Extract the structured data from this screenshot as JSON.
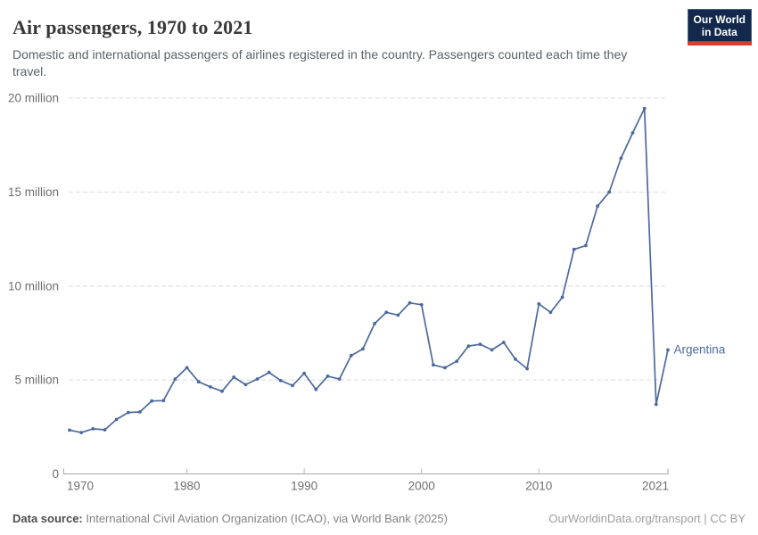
{
  "header": {
    "title": "Air passengers, 1970 to 2021",
    "subtitle": "Domestic and international passengers of airlines registered in the country. Passengers counted each time they travel.",
    "logo": {
      "line1": "Our World",
      "line2": "in Data"
    }
  },
  "chart_data": {
    "type": "line",
    "title": "Air passengers, 1970 to 2021",
    "entity": "Argentina",
    "unit": "passengers per year (million)",
    "x": [
      1970,
      1971,
      1972,
      1973,
      1974,
      1975,
      1976,
      1977,
      1978,
      1979,
      1980,
      1981,
      1982,
      1983,
      1984,
      1985,
      1986,
      1987,
      1988,
      1989,
      1990,
      1991,
      1992,
      1993,
      1994,
      1995,
      1996,
      1997,
      1998,
      1999,
      2000,
      2001,
      2002,
      2003,
      2004,
      2005,
      2006,
      2007,
      2008,
      2009,
      2010,
      2011,
      2012,
      2013,
      2014,
      2015,
      2016,
      2017,
      2018,
      2019,
      2020,
      2021
    ],
    "values": [
      2.33,
      2.2,
      2.4,
      2.35,
      2.9,
      3.27,
      3.3,
      3.88,
      3.9,
      5.05,
      5.65,
      4.9,
      4.63,
      4.4,
      5.15,
      4.75,
      5.05,
      5.4,
      4.97,
      4.7,
      5.35,
      4.5,
      5.2,
      5.05,
      6.3,
      6.65,
      8.0,
      8.6,
      8.45,
      9.1,
      9.0,
      5.8,
      5.65,
      6.0,
      6.8,
      6.9,
      6.6,
      7.0,
      6.1,
      5.6,
      9.05,
      8.6,
      9.4,
      11.95,
      12.15,
      14.25,
      15.0,
      16.8,
      18.15,
      19.45,
      3.7,
      6.6
    ],
    "ylim": [
      0,
      20
    ],
    "yticks": [
      5,
      10,
      15,
      20
    ],
    "ytick_labels": [
      "5 million",
      "10 million",
      "15 million",
      "20 million"
    ],
    "y_zero_label": "0",
    "xticks": [
      1970,
      1980,
      1990,
      2000,
      2010,
      2021
    ],
    "xtick_labels": [
      "1970",
      "1980",
      "1990",
      "2000",
      "2010",
      "2021"
    ],
    "grid": "horizontal-dashed",
    "legend_position": "end-of-line-label",
    "line_color": "#4c6a9c"
  },
  "footer": {
    "source_label": "Data source:",
    "source_text": " International Civil Aviation Organization (ICAO), via World Bank (2025)",
    "link_text": "OurWorldinData.org/transport | CC BY"
  },
  "colors": {
    "line": "#4c6a9c",
    "entity_label": "#4c6a9c",
    "grid": "#dcdcdc",
    "axis": "#a6a6a6",
    "tick": "#b8b8b8",
    "tick_label": "#6e6e6e",
    "title_text": "#383838",
    "subtitle_text": "#5b6164",
    "logo_bg": "#12294b",
    "logo_accent": "#d93b3b"
  }
}
